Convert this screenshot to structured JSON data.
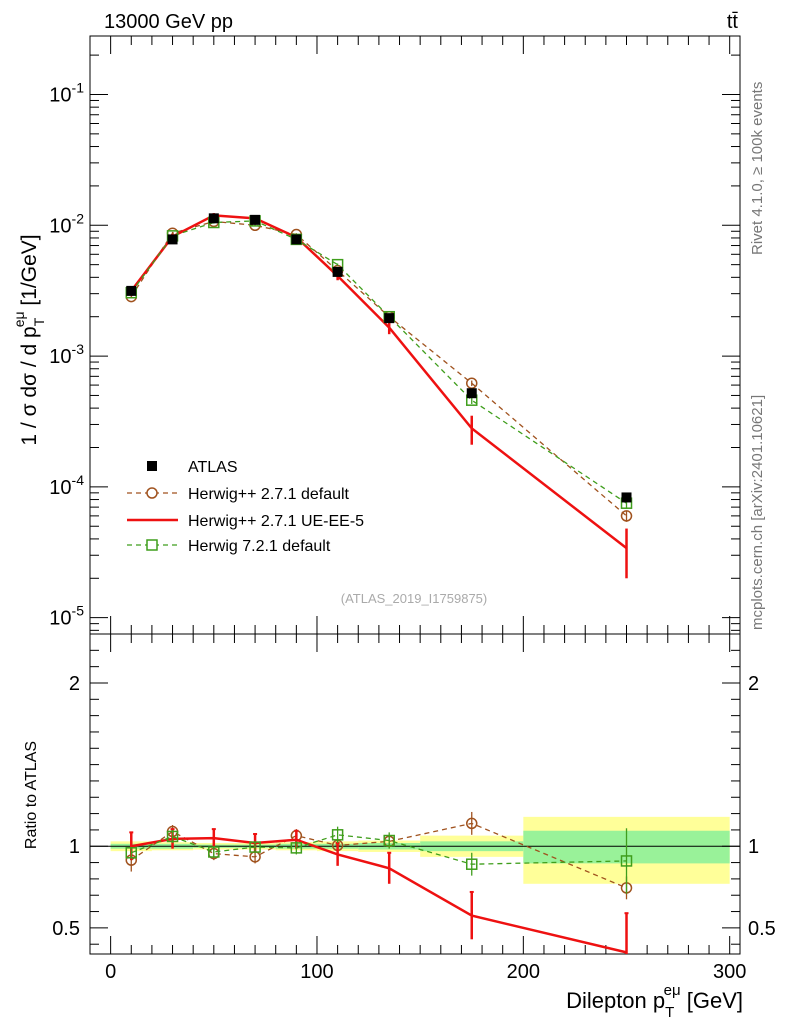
{
  "header": {
    "left": "13000 GeV pp",
    "right": "tt̄"
  },
  "side": {
    "rivet": "Rivet 4.1.0, ≥ 100k events",
    "mcplots": "mcplots.cern.ch [arXiv:2401.10621]"
  },
  "watermark": "(ATLAS_2019_I1759875)",
  "chart_data": [
    {
      "type": "line",
      "title": "13000 GeV pp  tt̄",
      "xlabel": "Dilepton p_T^eμ [GeV]",
      "ylabel": "1 / σ dσ / d p_T^eμ [1/GeV]",
      "yscale": "log",
      "xlim": [
        -10,
        305
      ],
      "ylim": [
        7.5e-06,
        0.28
      ],
      "x_ticks": [
        0,
        100,
        200,
        300
      ],
      "x_tick_labels": [
        "0",
        "100",
        "200",
        "300"
      ],
      "y_ticks": [
        1e-05,
        0.0001,
        0.001,
        0.01,
        0.1
      ],
      "y_tick_labels": [
        "10^-5",
        "10^-4",
        "10^-3",
        "10^-2",
        "10^-1"
      ],
      "x": [
        10,
        30,
        50,
        70,
        90,
        110,
        135,
        175,
        250
      ],
      "series": [
        {
          "name": "ATLAS",
          "style": "data",
          "color": "#000000",
          "values": [
            0.00315,
            0.0078,
            0.0113,
            0.011,
            0.0078,
            0.0044,
            0.00195,
            0.00052,
            8.3e-05
          ]
        },
        {
          "name": "Herwig++ 2.7.1 default",
          "style": "dashed-circle",
          "color": "#a0521e",
          "values": [
            0.00285,
            0.0087,
            0.0107,
            0.01,
            0.0085,
            0.0045,
            0.002,
            0.00062,
            6e-05
          ],
          "errors": [
            8e-05,
            0.0002,
            0.0002,
            0.0002,
            0.0002,
            0.0001,
            4e-05,
            3e-05,
            6e-06
          ]
        },
        {
          "name": "Herwig++ 2.7.1 UE-EE-5",
          "style": "solid",
          "color": "#ee1111",
          "values": [
            0.00315,
            0.0082,
            0.0119,
            0.0113,
            0.0081,
            0.0041,
            0.00165,
            0.00028,
            3.4e-05
          ],
          "errors": [
            0.00025,
            0.0004,
            0.0005,
            0.0005,
            0.0004,
            0.0003,
            0.00018,
            7e-05,
            1.4e-05
          ]
        },
        {
          "name": "Herwig 7.2.1 default",
          "style": "dashed-square",
          "color": "#3f9e1c",
          "values": [
            0.00305,
            0.0083,
            0.0105,
            0.0108,
            0.0078,
            0.005,
            0.002,
            0.00046,
            7.5e-05
          ],
          "errors": [
            8e-05,
            0.0002,
            0.0002,
            0.0002,
            0.0002,
            0.0001,
            4e-05,
            3e-05,
            7e-06
          ]
        }
      ],
      "legend": [
        "ATLAS",
        "Herwig++ 2.7.1 default",
        "Herwig++ 2.7.1 UE-EE-5",
        "Herwig 7.2.1 default"
      ],
      "legend_position": "bottom-left"
    },
    {
      "type": "line",
      "title": "",
      "xlabel": "Dilepton p_T^eμ [GeV]",
      "ylabel": "Ratio to ATLAS",
      "xlim": [
        -10,
        305
      ],
      "ylim": [
        0.34,
        2.3
      ],
      "x_ticks": [
        0,
        100,
        200,
        300
      ],
      "y_ticks": [
        0.5,
        1,
        2
      ],
      "y_tick_labels": [
        "0.5",
        "1",
        "2"
      ],
      "reference_line": 1,
      "uncertainty_bands": [
        {
          "x_range": [
            0,
            20
          ],
          "inner": [
            0.985,
            1.015
          ],
          "outer": [
            0.97,
            1.03
          ]
        },
        {
          "x_range": [
            20,
            40
          ],
          "inner": [
            0.985,
            1.015
          ],
          "outer": [
            0.975,
            1.025
          ]
        },
        {
          "x_range": [
            40,
            60
          ],
          "inner": [
            0.99,
            1.01
          ],
          "outer": [
            0.98,
            1.02
          ]
        },
        {
          "x_range": [
            60,
            80
          ],
          "inner": [
            0.99,
            1.01
          ],
          "outer": [
            0.98,
            1.02
          ]
        },
        {
          "x_range": [
            80,
            100
          ],
          "inner": [
            0.985,
            1.015
          ],
          "outer": [
            0.975,
            1.025
          ]
        },
        {
          "x_range": [
            100,
            120
          ],
          "inner": [
            0.985,
            1.015
          ],
          "outer": [
            0.97,
            1.03
          ]
        },
        {
          "x_range": [
            120,
            150
          ],
          "inner": [
            0.98,
            1.02
          ],
          "outer": [
            0.965,
            1.035
          ]
        },
        {
          "x_range": [
            150,
            200
          ],
          "inner": [
            0.97,
            1.03
          ],
          "outer": [
            0.935,
            1.065
          ]
        },
        {
          "x_range": [
            200,
            300
          ],
          "inner": [
            0.895,
            1.095
          ],
          "outer": [
            0.77,
            1.18
          ]
        }
      ],
      "x": [
        10,
        30,
        50,
        70,
        90,
        110,
        135,
        175,
        250
      ],
      "series": [
        {
          "name": "Herwig++ 2.7.1 default",
          "color": "#a0521e",
          "values": [
            0.915,
            1.09,
            0.955,
            0.935,
            1.065,
            1.005,
            1.03,
            1.14,
            0.745
          ],
          "errors": [
            0.07,
            0.04,
            0.04,
            0.04,
            0.04,
            0.04,
            0.04,
            0.07,
            0.07
          ]
        },
        {
          "name": "Herwig++ 2.7.1 UE-EE-5",
          "color": "#ee1111",
          "values": [
            1.0,
            1.045,
            1.05,
            1.02,
            1.04,
            0.95,
            0.865,
            0.575,
            0.35
          ],
          "errors": [
            0.085,
            0.06,
            0.055,
            0.055,
            0.055,
            0.07,
            0.095,
            0.145,
            0.24
          ]
        },
        {
          "name": "Herwig 7.2.1 default",
          "color": "#3f9e1c",
          "values": [
            0.96,
            1.06,
            0.965,
            0.995,
            0.99,
            1.07,
            1.035,
            0.89,
            0.91
          ],
          "errors": [
            0.03,
            0.04,
            0.03,
            0.03,
            0.04,
            0.05,
            0.05,
            0.07,
            0.2
          ]
        }
      ]
    }
  ]
}
